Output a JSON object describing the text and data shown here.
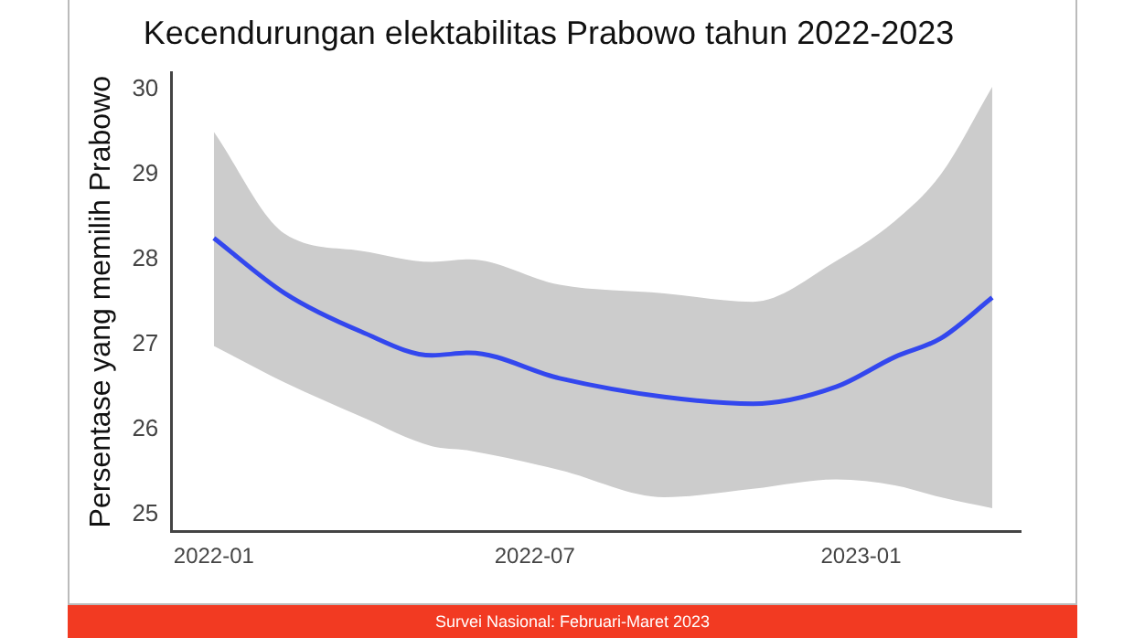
{
  "chart_data": {
    "type": "line",
    "title": "Kecendurungan elektabilitas Prabowo tahun 2022-2023",
    "ylabel": "Persentase yang memilih Prabowo",
    "x": [
      "2022-01-01",
      "2022-02-10",
      "2022-03-25",
      "2022-05-04",
      "2022-05-25",
      "2022-07-15",
      "2022-09-12",
      "2022-11-01",
      "2022-12-18",
      "2023-01-20",
      "2023-02-15",
      "2023-03-16"
    ],
    "series": [
      {
        "color": "#3347ee",
        "values": [
          28.25,
          27.6,
          27.15,
          26.87,
          26.9,
          26.6,
          26.38,
          26.3,
          26.5,
          26.85,
          27.07,
          27.55
        ],
        "lower": [
          26.98,
          26.55,
          26.15,
          25.8,
          25.75,
          25.52,
          25.2,
          25.3,
          25.41,
          25.34,
          25.2,
          25.07
        ],
        "upper": [
          29.5,
          28.3,
          28.1,
          27.97,
          28.0,
          27.7,
          27.6,
          27.5,
          27.98,
          28.45,
          29.0,
          30.03
        ]
      }
    ],
    "xlim": [
      "2021-12-08",
      "2023-04-01"
    ],
    "xticks": [
      "2022-01",
      "2022-07",
      "2023-01"
    ],
    "ylim": [
      24.8,
      30.2
    ],
    "yticks": [
      25,
      26,
      27,
      28,
      29,
      30
    ],
    "marker": "none",
    "legend": false,
    "annotations": [
      "Survei Nasional: Februari-Maret 2023"
    ]
  }
}
